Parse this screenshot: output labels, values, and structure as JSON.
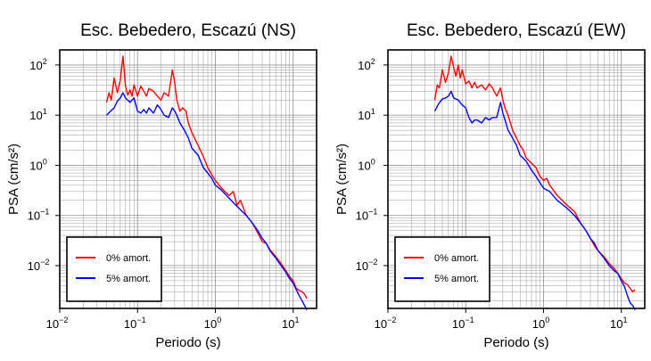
{
  "chart_data": [
    {
      "type": "line",
      "title": "Esc. Bebedero, Escazú (NS)",
      "xlabel": "Periodo (s)",
      "ylabel": "PSA (cm/s²)",
      "xscale": "log",
      "yscale": "log",
      "xlim": [
        0.01,
        20
      ],
      "ylim": [
        0.0014,
        200
      ],
      "grid": true,
      "legend_position": "bottom-left",
      "x_ticks": [
        {
          "base": "10",
          "exp": "−2"
        },
        {
          "base": "10",
          "exp": "−1"
        },
        {
          "base": "10",
          "exp": "0"
        },
        {
          "base": "10",
          "exp": "1"
        }
      ],
      "y_ticks": [
        {
          "base": "10",
          "exp": "−2"
        },
        {
          "base": "10",
          "exp": "−1"
        },
        {
          "base": "10",
          "exp": "0"
        },
        {
          "base": "10",
          "exp": "1"
        },
        {
          "base": "10",
          "exp": "2"
        }
      ],
      "series": [
        {
          "name": "0% amort.",
          "color": "#ff0000",
          "points": [
            [
              0.04,
              18
            ],
            [
              0.043,
              28
            ],
            [
              0.046,
              20
            ],
            [
              0.05,
              55
            ],
            [
              0.055,
              28
            ],
            [
              0.06,
              50
            ],
            [
              0.065,
              150
            ],
            [
              0.07,
              38
            ],
            [
              0.075,
              25
            ],
            [
              0.08,
              32
            ],
            [
              0.085,
              24
            ],
            [
              0.09,
              40
            ],
            [
              0.1,
              24
            ],
            [
              0.11,
              38
            ],
            [
              0.12,
              30
            ],
            [
              0.13,
              24
            ],
            [
              0.14,
              34
            ],
            [
              0.16,
              30
            ],
            [
              0.18,
              24
            ],
            [
              0.2,
              20
            ],
            [
              0.22,
              28
            ],
            [
              0.25,
              24
            ],
            [
              0.28,
              80
            ],
            [
              0.3,
              45
            ],
            [
              0.32,
              20
            ],
            [
              0.35,
              12
            ],
            [
              0.38,
              14
            ],
            [
              0.42,
              12
            ],
            [
              0.45,
              7
            ],
            [
              0.5,
              4.5
            ],
            [
              0.6,
              2.5
            ],
            [
              0.7,
              1.5
            ],
            [
              0.8,
              0.9
            ],
            [
              0.9,
              0.65
            ],
            [
              1.0,
              0.5
            ],
            [
              1.2,
              0.35
            ],
            [
              1.5,
              0.25
            ],
            [
              1.7,
              0.3
            ],
            [
              1.9,
              0.16
            ],
            [
              2.1,
              0.2
            ],
            [
              2.5,
              0.1
            ],
            [
              3,
              0.07
            ],
            [
              3.5,
              0.045
            ],
            [
              4,
              0.03
            ],
            [
              4.5,
              0.028
            ],
            [
              5,
              0.021
            ],
            [
              6,
              0.015
            ],
            [
              7,
              0.011
            ],
            [
              8,
              0.008
            ],
            [
              9,
              0.006
            ],
            [
              10,
              0.005
            ],
            [
              11,
              0.0035
            ],
            [
              12,
              0.0032
            ],
            [
              13,
              0.003
            ],
            [
              14,
              0.0027
            ],
            [
              15,
              0.0022
            ]
          ]
        },
        {
          "name": "5% amort.",
          "color": "#0000ff",
          "points": [
            [
              0.04,
              10
            ],
            [
              0.045,
              12
            ],
            [
              0.05,
              14
            ],
            [
              0.055,
              19
            ],
            [
              0.06,
              22
            ],
            [
              0.065,
              28
            ],
            [
              0.07,
              22
            ],
            [
              0.08,
              18
            ],
            [
              0.09,
              22
            ],
            [
              0.1,
              12
            ],
            [
              0.11,
              11
            ],
            [
              0.12,
              13
            ],
            [
              0.13,
              11
            ],
            [
              0.14,
              14
            ],
            [
              0.16,
              11
            ],
            [
              0.18,
              16
            ],
            [
              0.2,
              13
            ],
            [
              0.22,
              10
            ],
            [
              0.25,
              9
            ],
            [
              0.28,
              14
            ],
            [
              0.3,
              12
            ],
            [
              0.32,
              10
            ],
            [
              0.35,
              7
            ],
            [
              0.4,
              5
            ],
            [
              0.45,
              3.5
            ],
            [
              0.5,
              2.2
            ],
            [
              0.6,
              1.6
            ],
            [
              0.7,
              0.9
            ],
            [
              0.8,
              0.7
            ],
            [
              0.9,
              0.55
            ],
            [
              1.0,
              0.4
            ],
            [
              1.2,
              0.32
            ],
            [
              1.5,
              0.22
            ],
            [
              1.7,
              0.18
            ],
            [
              2.0,
              0.14
            ],
            [
              2.5,
              0.1
            ],
            [
              3,
              0.07
            ],
            [
              3.5,
              0.05
            ],
            [
              4,
              0.035
            ],
            [
              4.5,
              0.028
            ],
            [
              5,
              0.02
            ],
            [
              6,
              0.014
            ],
            [
              7,
              0.01
            ],
            [
              8,
              0.0075
            ],
            [
              9,
              0.0055
            ],
            [
              10,
              0.0045
            ],
            [
              11,
              0.0033
            ],
            [
              12,
              0.0025
            ],
            [
              13,
              0.002
            ],
            [
              14,
              0.0016
            ],
            [
              15,
              0.0013
            ]
          ]
        }
      ]
    },
    {
      "type": "line",
      "title": "Esc. Bebedero, Escazú (EW)",
      "xlabel": "Periodo (s)",
      "ylabel": "PSA (cm/s²)",
      "xscale": "log",
      "yscale": "log",
      "xlim": [
        0.01,
        20
      ],
      "ylim": [
        0.0014,
        200
      ],
      "grid": true,
      "legend_position": "bottom-left",
      "x_ticks": [
        {
          "base": "10",
          "exp": "−2"
        },
        {
          "base": "10",
          "exp": "−1"
        },
        {
          "base": "10",
          "exp": "0"
        },
        {
          "base": "10",
          "exp": "1"
        }
      ],
      "y_ticks": [
        {
          "base": "10",
          "exp": "−2"
        },
        {
          "base": "10",
          "exp": "−1"
        },
        {
          "base": "10",
          "exp": "0"
        },
        {
          "base": "10",
          "exp": "1"
        },
        {
          "base": "10",
          "exp": "2"
        }
      ],
      "series": [
        {
          "name": "0% amort.",
          "color": "#ff0000",
          "points": [
            [
              0.04,
              20
            ],
            [
              0.043,
              40
            ],
            [
              0.046,
              35
            ],
            [
              0.05,
              80
            ],
            [
              0.055,
              45
            ],
            [
              0.06,
              70
            ],
            [
              0.065,
              150
            ],
            [
              0.07,
              90
            ],
            [
              0.075,
              60
            ],
            [
              0.08,
              100
            ],
            [
              0.085,
              55
            ],
            [
              0.09,
              80
            ],
            [
              0.1,
              42
            ],
            [
              0.11,
              48
            ],
            [
              0.12,
              35
            ],
            [
              0.13,
              45
            ],
            [
              0.14,
              35
            ],
            [
              0.16,
              40
            ],
            [
              0.18,
              32
            ],
            [
              0.2,
              42
            ],
            [
              0.22,
              35
            ],
            [
              0.25,
              24
            ],
            [
              0.28,
              35
            ],
            [
              0.3,
              20
            ],
            [
              0.32,
              14
            ],
            [
              0.35,
              10
            ],
            [
              0.4,
              5
            ],
            [
              0.45,
              3.5
            ],
            [
              0.5,
              2.5
            ],
            [
              0.55,
              2
            ],
            [
              0.6,
              1.4
            ],
            [
              0.7,
              1.1
            ],
            [
              0.8,
              0.9
            ],
            [
              0.9,
              0.6
            ],
            [
              1.0,
              0.5
            ],
            [
              1.1,
              0.55
            ],
            [
              1.2,
              0.4
            ],
            [
              1.5,
              0.25
            ],
            [
              2,
              0.16
            ],
            [
              2.5,
              0.12
            ],
            [
              3,
              0.07
            ],
            [
              3.5,
              0.05
            ],
            [
              4,
              0.035
            ],
            [
              4.5,
              0.025
            ],
            [
              5,
              0.02
            ],
            [
              6,
              0.015
            ],
            [
              7,
              0.011
            ],
            [
              8,
              0.009
            ],
            [
              9,
              0.007
            ],
            [
              10,
              0.0055
            ],
            [
              11,
              0.0045
            ],
            [
              12,
              0.0042
            ],
            [
              13,
              0.0035
            ],
            [
              14,
              0.003
            ],
            [
              15,
              0.0033
            ]
          ]
        },
        {
          "name": "5% amort.",
          "color": "#0000ff",
          "points": [
            [
              0.04,
              12
            ],
            [
              0.045,
              17
            ],
            [
              0.05,
              21
            ],
            [
              0.055,
              22
            ],
            [
              0.06,
              24
            ],
            [
              0.065,
              30
            ],
            [
              0.07,
              22
            ],
            [
              0.08,
              20
            ],
            [
              0.09,
              16
            ],
            [
              0.1,
              14
            ],
            [
              0.11,
              9
            ],
            [
              0.12,
              7
            ],
            [
              0.13,
              8
            ],
            [
              0.14,
              8
            ],
            [
              0.16,
              7
            ],
            [
              0.18,
              9
            ],
            [
              0.2,
              8
            ],
            [
              0.22,
              9
            ],
            [
              0.25,
              9
            ],
            [
              0.28,
              18
            ],
            [
              0.3,
              11
            ],
            [
              0.32,
              8
            ],
            [
              0.35,
              5
            ],
            [
              0.4,
              3.5
            ],
            [
              0.45,
              2.5
            ],
            [
              0.5,
              1.6
            ],
            [
              0.6,
              1.2
            ],
            [
              0.7,
              0.8
            ],
            [
              0.8,
              0.6
            ],
            [
              0.9,
              0.45
            ],
            [
              1.0,
              0.35
            ],
            [
              1.2,
              0.3
            ],
            [
              1.5,
              0.2
            ],
            [
              2,
              0.14
            ],
            [
              2.5,
              0.1
            ],
            [
              3,
              0.07
            ],
            [
              3.5,
              0.05
            ],
            [
              4,
              0.035
            ],
            [
              4.5,
              0.028
            ],
            [
              5,
              0.02
            ],
            [
              6,
              0.014
            ],
            [
              7,
              0.01
            ],
            [
              8,
              0.008
            ],
            [
              9,
              0.007
            ],
            [
              10,
              0.005
            ],
            [
              11,
              0.0038
            ],
            [
              12,
              0.0025
            ],
            [
              13,
              0.0018
            ],
            [
              14,
              0.0016
            ],
            [
              15,
              0.0013
            ]
          ]
        }
      ]
    }
  ]
}
